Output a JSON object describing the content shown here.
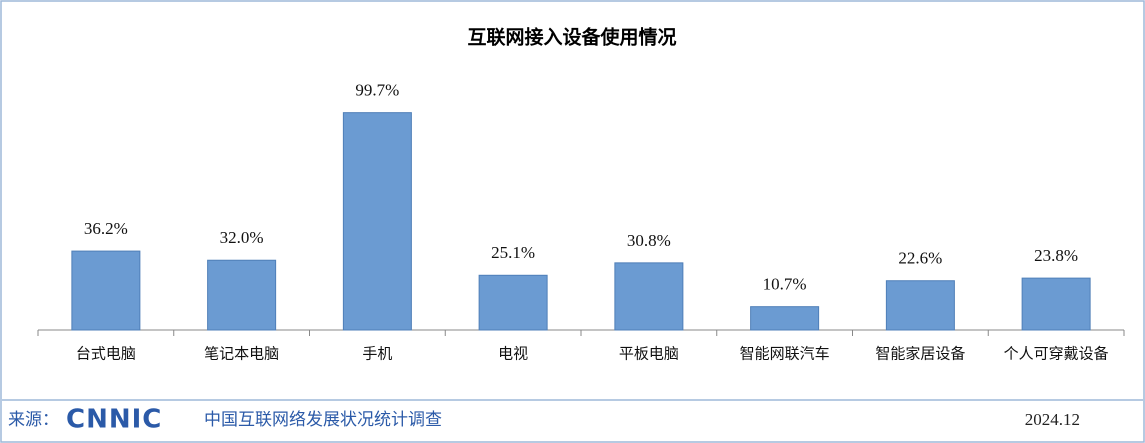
{
  "chart_data": {
    "type": "bar",
    "title": "互联网接入设备使用情况",
    "categories": [
      "台式电脑",
      "笔记本电脑",
      "手机",
      "电视",
      "平板电脑",
      "智能网联汽车",
      "智能家居设备",
      "个人可穿戴设备"
    ],
    "values": [
      36.2,
      32.0,
      99.7,
      25.1,
      30.8,
      10.7,
      22.6,
      23.8
    ],
    "value_labels": [
      "36.2%",
      "32.0%",
      "99.7%",
      "25.1%",
      "30.8%",
      "10.7%",
      "22.6%",
      "23.8%"
    ],
    "color": "#6b9bd2",
    "ylim": [
      0,
      100
    ]
  },
  "footer": {
    "source_label": "来源：",
    "logo": "CNNIC",
    "source": "中国互联网络发展状况统计调查",
    "date": "2024.12"
  }
}
